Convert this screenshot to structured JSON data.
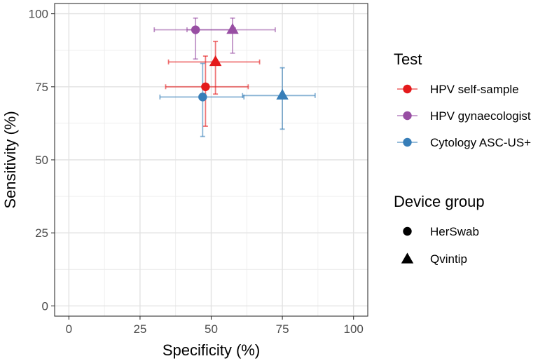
{
  "chart_data": {
    "type": "scatter",
    "xlabel": "Specificity (%)",
    "ylabel": "Sensitivity (%)",
    "xlim": [
      -5,
      105
    ],
    "ylim": [
      -3.5,
      103.5
    ],
    "xticks": [
      0,
      25,
      50,
      75,
      100
    ],
    "yticks": [
      0,
      25,
      50,
      75,
      100
    ],
    "tick_labels_x": [
      "0",
      "25",
      "50",
      "75",
      "100"
    ],
    "tick_labels_y": [
      "0",
      "25",
      "50",
      "75",
      "100"
    ],
    "grid": true,
    "legend_position": "right",
    "legends": {
      "color": {
        "title": "Test",
        "entries": [
          {
            "label": "HPV self-sample",
            "color": "#e41a1c"
          },
          {
            "label": "HPV gynaecologist",
            "color": "#984ea3"
          },
          {
            "label": "Cytology ASC-US+",
            "color": "#377eb8"
          }
        ]
      },
      "shape": {
        "title": "Device group",
        "entries": [
          {
            "label": "HerSwab",
            "shape": "circle"
          },
          {
            "label": "Qvintip",
            "shape": "triangle"
          }
        ]
      }
    },
    "points": [
      {
        "test": "HPV self-sample",
        "device": "HerSwab",
        "specificity": 48,
        "spec_low": 34,
        "spec_high": 63,
        "sensitivity": 75,
        "sens_low": 61.5,
        "sens_high": 85.5
      },
      {
        "test": "HPV self-sample",
        "device": "Qvintip",
        "specificity": 51.5,
        "spec_low": 35,
        "spec_high": 67,
        "sensitivity": 83.5,
        "sens_low": 72.5,
        "sens_high": 90.5
      },
      {
        "test": "HPV gynaecologist",
        "device": "HerSwab",
        "specificity": 44.5,
        "spec_low": 30,
        "spec_high": 58.5,
        "sensitivity": 94.5,
        "sens_low": 84.5,
        "sens_high": 98.5
      },
      {
        "test": "HPV gynaecologist",
        "device": "Qvintip",
        "specificity": 57.5,
        "spec_low": 41.5,
        "spec_high": 72.5,
        "sensitivity": 94.5,
        "sens_low": 86.5,
        "sens_high": 98.5
      },
      {
        "test": "Cytology ASC-US+",
        "device": "HerSwab",
        "specificity": 47,
        "spec_low": 32,
        "spec_high": 61.5,
        "sensitivity": 71.5,
        "sens_low": 58,
        "sens_high": 83
      },
      {
        "test": "Cytology ASC-US+",
        "device": "Qvintip",
        "specificity": 75,
        "spec_low": 61,
        "spec_high": 86.5,
        "sensitivity": 72,
        "sens_low": 60.5,
        "sens_high": 81.5
      }
    ]
  }
}
